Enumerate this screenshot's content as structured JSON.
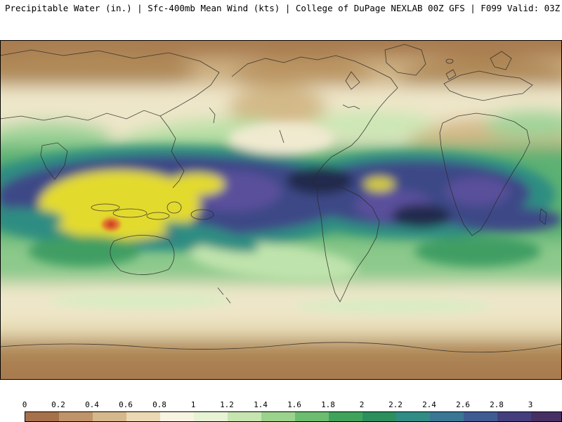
{
  "header": {
    "title": "Precipitable Water (in.) | Sfc-400mb Mean Wind (kts) | College of DuPage NEXLAB 00Z GFS | F099 Valid: 03Z FRI NOV 21 2025",
    "parameter": "Precipitable Water (in.)",
    "wind_layer": "Sfc-400mb Mean Wind (kts)",
    "source": "College of DuPage NEXLAB 00Z GFS",
    "forecast_hour": "F099",
    "valid_time": "03Z FRI NOV 21 2025"
  },
  "map": {
    "type": "global shaded precipitable water analysis",
    "region": "world"
  },
  "colorbar": {
    "unit": "in.",
    "labels": [
      "0",
      "0.2",
      "0.4",
      "0.6",
      "0.8",
      "1",
      "1.2",
      "1.4",
      "1.6",
      "1.8",
      "2",
      "2.2",
      "2.4",
      "2.6",
      "2.8",
      "3"
    ],
    "colors": [
      "#a5714a",
      "#bf9468",
      "#d6b88d",
      "#ead9b2",
      "#f8f4e2",
      "#e6f3d4",
      "#c6e5b0",
      "#9bd28c",
      "#6cbd70",
      "#40a35b",
      "#2c8f5e",
      "#2f8d85",
      "#3b7795",
      "#3f5b92",
      "#433f7c",
      "#452f63"
    ]
  }
}
